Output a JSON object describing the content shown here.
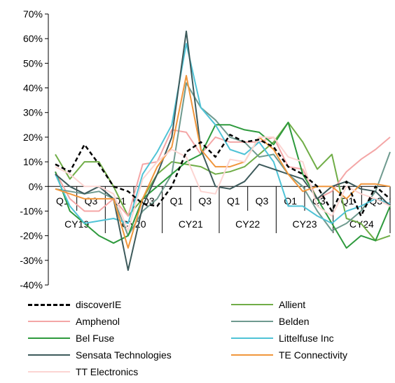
{
  "chart_data": {
    "type": "line",
    "ylim": [
      -40,
      70
    ],
    "yticks": [
      -40,
      -30,
      -20,
      -10,
      0,
      10,
      20,
      30,
      40,
      50,
      60,
      70
    ],
    "ytick_labels": [
      "-40%",
      "-30%",
      "-20%",
      "-10%",
      "0%",
      "10%",
      "20%",
      "30%",
      "40%",
      "50%",
      "60%",
      "70%"
    ],
    "quarter_labels": [
      "Q1",
      "Q3",
      "Q1",
      "Q3",
      "Q1",
      "Q3",
      "Q1",
      "Q3",
      "Q1",
      "Q3",
      "Q1",
      "Q3"
    ],
    "year_labels": [
      "CY19",
      "CY20",
      "CY21",
      "CY22",
      "CY23",
      "CY24"
    ],
    "n_points": 24,
    "series": [
      {
        "name": "discoverIE",
        "color": "#000000",
        "dashed": true,
        "values": [
          9,
          6,
          17,
          9,
          0,
          -2,
          -7,
          -8,
          0,
          14,
          18,
          12,
          21,
          18,
          19,
          16,
          8,
          5,
          0,
          -10,
          2,
          -12,
          0,
          -5
        ]
      },
      {
        "name": "Allient",
        "color": "#70AD47",
        "values": [
          13,
          3,
          10,
          10,
          0,
          -12,
          -5,
          5,
          10,
          9,
          8,
          5,
          6,
          8,
          13,
          18,
          26,
          18,
          7,
          13,
          -13,
          -15,
          -22,
          -20
        ]
      },
      {
        "name": "Amphenol",
        "color": "#F4A6A6",
        "values": [
          6,
          -5,
          -10,
          -10,
          -5,
          -12,
          9,
          10,
          23,
          22,
          13,
          20,
          18,
          18,
          18,
          20,
          8,
          7,
          -5,
          -2,
          6,
          11,
          15,
          20
        ]
      },
      {
        "name": "Belden",
        "color": "#6F9A8F",
        "values": [
          -1,
          -2,
          -3,
          -2,
          -5,
          -20,
          -10,
          -5,
          5,
          42,
          32,
          27,
          20,
          18,
          12,
          13,
          5,
          0,
          -10,
          -18,
          -15,
          -10,
          -2,
          14
        ]
      },
      {
        "name": "Bel Fuse",
        "color": "#2E9A3D",
        "values": [
          6,
          -10,
          -15,
          -20,
          -23,
          -20,
          -5,
          0,
          5,
          10,
          13,
          25,
          25,
          23,
          22,
          17,
          26,
          5,
          -5,
          -15,
          -25,
          -20,
          -22,
          -8
        ]
      },
      {
        "name": "Littelfuse Inc",
        "color": "#4FC3D6",
        "values": [
          5,
          -8,
          -15,
          -14,
          -13,
          -15,
          5,
          14,
          25,
          58,
          32,
          25,
          15,
          13,
          18,
          10,
          -8,
          -8,
          -12,
          -15,
          -10,
          -8,
          -5,
          -7
        ]
      },
      {
        "name": "Sensata Technologies",
        "color": "#3D5A5B",
        "values": [
          5,
          0,
          -3,
          0,
          -5,
          -34,
          -8,
          5,
          20,
          63,
          15,
          0,
          -1,
          2,
          9,
          7,
          5,
          3,
          -5,
          0,
          2,
          -1,
          -2,
          -8
        ]
      },
      {
        "name": "TE Connectivity",
        "color": "#F0963C",
        "values": [
          -1,
          -3,
          -5,
          -5,
          -5,
          -25,
          -5,
          8,
          16,
          45,
          15,
          8,
          8,
          10,
          20,
          15,
          5,
          -2,
          0,
          0,
          -5,
          1,
          1,
          0
        ]
      },
      {
        "name": "TT Electronics",
        "color": "#FCD5D2",
        "values": [
          8,
          5,
          0,
          0,
          -3,
          -18,
          3,
          10,
          15,
          12,
          -2,
          -3,
          11,
          10,
          20,
          20,
          12,
          10,
          -8,
          -12,
          0,
          -3,
          -5,
          -8
        ]
      }
    ]
  }
}
